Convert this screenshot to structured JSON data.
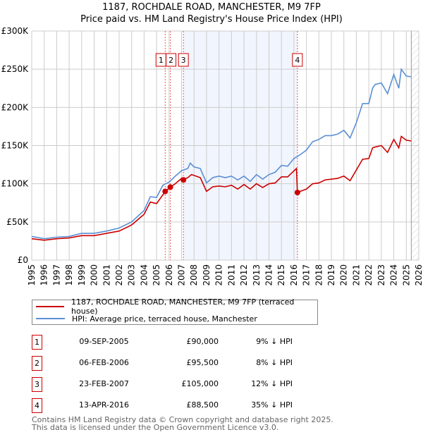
{
  "chart_data": {
    "type": "line",
    "title": "1187, ROCHDALE ROAD, MANCHESTER, M9 7FP",
    "subtitle": "Price paid vs. HM Land Registry's House Price Index (HPI)",
    "xlim": [
      1995,
      2026
    ],
    "ylim": [
      0,
      300000
    ],
    "x_ticks": [
      "1995",
      "1996",
      "1997",
      "1998",
      "1999",
      "2000",
      "2001",
      "2002",
      "2003",
      "2004",
      "2005",
      "2006",
      "2007",
      "2008",
      "2009",
      "2010",
      "2011",
      "2012",
      "2013",
      "2014",
      "2015",
      "2016",
      "2017",
      "2018",
      "2019",
      "2020",
      "2021",
      "2022",
      "2023",
      "2024",
      "2025",
      "2026"
    ],
    "y_ticks": [
      {
        "v": 0,
        "label": "£0"
      },
      {
        "v": 50000,
        "label": "£50K"
      },
      {
        "v": 100000,
        "label": "£100K"
      },
      {
        "v": 150000,
        "label": "£150K"
      },
      {
        "v": 200000,
        "label": "£200K"
      },
      {
        "v": 250000,
        "label": "£250K"
      },
      {
        "v": 300000,
        "label": "£300K"
      }
    ],
    "grid": true,
    "shaded_range": [
      2007.15,
      2016.28
    ],
    "forecast_hatch_from": 2025.4,
    "series": [
      {
        "name": "1187, ROCHDALE ROAD, MANCHESTER, M9 7FP (terraced house)",
        "color": "#cc0000",
        "x": [
          1995,
          1996,
          1997,
          1998,
          1999,
          2000,
          2001,
          2002,
          2003,
          2004,
          2004.5,
          2005,
          2005.7,
          2006.1,
          2006.5,
          2007,
          2007.15,
          2007.5,
          2007.8,
          2008.5,
          2009,
          2009.5,
          2010,
          2010.5,
          2011,
          2011.5,
          2012,
          2012.5,
          2013,
          2013.5,
          2014,
          2014.5,
          2015,
          2015.5,
          2016.2,
          2016.28,
          2016.5,
          2017,
          2017.5,
          2018,
          2018.5,
          2019,
          2019.5,
          2020,
          2020.5,
          2021,
          2021.5,
          2022,
          2022.3,
          2022.5,
          2023,
          2023.5,
          2024,
          2024.4,
          2024.6,
          2025,
          2025.4
        ],
        "y": [
          28000,
          26000,
          28000,
          29000,
          32000,
          32000,
          35000,
          38000,
          46000,
          60000,
          76000,
          74000,
          90000,
          95500,
          100000,
          107000,
          105000,
          108000,
          112000,
          108000,
          90000,
          96000,
          97000,
          96000,
          98000,
          93000,
          99000,
          93000,
          100000,
          95000,
          100000,
          101000,
          109000,
          109000,
          120000,
          88500,
          90000,
          93000,
          100000,
          101000,
          105000,
          106000,
          107000,
          110000,
          104000,
          118000,
          132000,
          133000,
          147000,
          148000,
          150000,
          141000,
          158000,
          147000,
          162000,
          157000,
          156000
        ]
      },
      {
        "name": "HPI: Average price, terraced house, Manchester",
        "color": "#5b8fd4",
        "x": [
          1995,
          1996,
          1997,
          1998,
          1999,
          2000,
          2001,
          2002,
          2003,
          2004,
          2004.5,
          2005,
          2005.5,
          2006,
          2006.5,
          2007,
          2007.5,
          2007.7,
          2008,
          2008.5,
          2009,
          2009.5,
          2010,
          2010.5,
          2011,
          2011.5,
          2012,
          2012.5,
          2013,
          2013.5,
          2014,
          2014.5,
          2015,
          2015.5,
          2016,
          2016.5,
          2017,
          2017.5,
          2018,
          2018.5,
          2019,
          2019.5,
          2020,
          2020.5,
          2021,
          2021.5,
          2022,
          2022.3,
          2022.5,
          2023,
          2023.5,
          2024,
          2024.4,
          2024.6,
          2025,
          2025.4
        ],
        "y": [
          31000,
          28000,
          30000,
          31000,
          35000,
          35000,
          38000,
          42000,
          50000,
          65000,
          83000,
          82000,
          98000,
          102000,
          110000,
          117000,
          120000,
          127000,
          122000,
          120000,
          101000,
          108000,
          110000,
          108000,
          110000,
          105000,
          110000,
          103000,
          112000,
          106000,
          112000,
          115000,
          124000,
          123000,
          133000,
          138000,
          144000,
          155000,
          158000,
          163000,
          163000,
          165000,
          170000,
          160000,
          180000,
          205000,
          205000,
          225000,
          230000,
          232000,
          218000,
          243000,
          225000,
          250000,
          241000,
          240000
        ]
      }
    ],
    "sales": [
      {
        "n": "1",
        "x": 2005.69,
        "date": "09-SEP-2005",
        "price_value": 90000,
        "price": "£90,000",
        "hpi": "9% ↓ HPI"
      },
      {
        "n": "2",
        "x": 2006.1,
        "date": "06-FEB-2006",
        "price_value": 95500,
        "price": "£95,500",
        "hpi": "8% ↓ HPI"
      },
      {
        "n": "3",
        "x": 2007.15,
        "date": "23-FEB-2007",
        "price_value": 105000,
        "price": "£105,000",
        "hpi": "12% ↓ HPI"
      },
      {
        "n": "4",
        "x": 2016.28,
        "date": "13-APR-2016",
        "price_value": 88500,
        "price": "£88,500",
        "hpi": "35% ↓ HPI"
      }
    ]
  },
  "legend": {
    "property": "1187, ROCHDALE ROAD, MANCHESTER, M9 7FP (terraced house)",
    "hpi": "HPI: Average price, terraced house, Manchester"
  },
  "footer": {
    "line1": "Contains HM Land Registry data © Crown copyright and database right 2025.",
    "line2": "This data is licensed under the Open Government Licence v3.0."
  }
}
